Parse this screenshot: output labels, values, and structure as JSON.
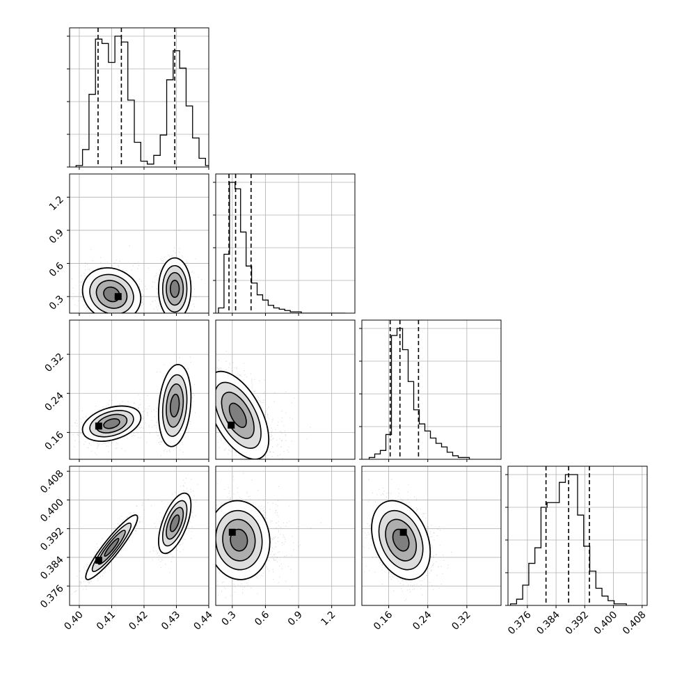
{
  "chart_data": {
    "type": "corner",
    "n_params": 4,
    "grid": true,
    "params": [
      {
        "range": [
          0.397,
          0.44
        ],
        "ticks": [
          0.4,
          0.41,
          0.42,
          0.43,
          0.44
        ],
        "tick_labels": [
          "0.40",
          "0.41",
          "0.42",
          "0.43",
          "0.44"
        ]
      },
      {
        "range": [
          0.15,
          1.41
        ],
        "ticks": [
          0.3,
          0.6,
          0.9,
          1.2
        ],
        "tick_labels": [
          "0.3",
          "0.6",
          "0.9",
          "1.2"
        ]
      },
      {
        "range": [
          0.105,
          0.39
        ],
        "ticks": [
          0.16,
          0.24,
          0.32
        ],
        "tick_labels": [
          "0.16",
          "0.24",
          "0.32"
        ]
      },
      {
        "range": [
          0.3706,
          0.4094
        ],
        "ticks": [
          0.376,
          0.384,
          0.392,
          0.4,
          0.408
        ],
        "tick_labels": [
          "0.376",
          "0.384",
          "0.392",
          "0.400",
          "0.408"
        ]
      }
    ],
    "quantiles": [
      [
        0.4058,
        0.413,
        0.4295
      ],
      [
        0.27,
        0.33,
        0.47
      ],
      [
        0.163,
        0.183,
        0.221
      ],
      [
        0.3812,
        0.3875,
        0.3933
      ]
    ],
    "histograms": [
      {
        "edges_from": 0.399,
        "bin_width": 0.002,
        "counts": [
          1,
          12,
          50,
          88,
          85,
          72,
          90,
          86,
          46,
          17,
          4,
          2,
          8,
          22,
          60,
          80,
          68,
          42,
          20,
          6,
          1
        ]
      },
      {
        "edges_from": 0.175,
        "bin_width": 0.05,
        "counts": [
          4,
          45,
          100,
          95,
          62,
          36,
          23,
          14,
          10,
          6,
          4,
          3,
          2,
          1,
          1,
          0,
          0,
          0,
          0,
          0,
          0,
          0,
          0
        ]
      },
      {
        "edges_from": 0.12,
        "bin_width": 0.0114,
        "counts": [
          1,
          3,
          5,
          14,
          70,
          74,
          62,
          44,
          28,
          20,
          16,
          12,
          9,
          7,
          4,
          2,
          1,
          1
        ]
      },
      {
        "edges_from": 0.3713,
        "bin_width": 0.0017,
        "counts": [
          1,
          4,
          13,
          27,
          37,
          63,
          66,
          66,
          79,
          84,
          84,
          58,
          38,
          22,
          11,
          6,
          3,
          1,
          1
        ]
      }
    ],
    "pairs": [
      {
        "x": 0,
        "y": 1,
        "modes": [
          {
            "cx": 0.41,
            "cy": 0.32,
            "sx": 0.0045,
            "sy": 0.12,
            "rho": -0.15,
            "w": 0.64
          },
          {
            "cx": 0.4295,
            "cy": 0.37,
            "sx": 0.0025,
            "sy": 0.14,
            "rho": 0.0,
            "w": 0.36
          }
        ],
        "peak": [
          0.412,
          0.3
        ]
      },
      {
        "x": 0,
        "y": 2,
        "modes": [
          {
            "cx": 0.41,
            "cy": 0.178,
            "sx": 0.0045,
            "sy": 0.018,
            "rho": 0.35,
            "w": 0.64
          },
          {
            "cx": 0.4295,
            "cy": 0.215,
            "sx": 0.0025,
            "sy": 0.042,
            "rho": 0.2,
            "w": 0.36
          }
        ],
        "peak": [
          0.406,
          0.173
        ]
      },
      {
        "x": 0,
        "y": 3,
        "modes": [
          {
            "cx": 0.41,
            "cy": 0.3868,
            "sx": 0.004,
            "sy": 0.0045,
            "rho": 0.92,
            "w": 0.64
          },
          {
            "cx": 0.4295,
            "cy": 0.3935,
            "sx": 0.0025,
            "sy": 0.0042,
            "rho": 0.6,
            "w": 0.36
          }
        ],
        "peak": [
          0.406,
          0.3832
        ]
      },
      {
        "x": 1,
        "y": 2,
        "modes": [
          {
            "cx": 0.35,
            "cy": 0.195,
            "sx": 0.14,
            "sy": 0.045,
            "rho": -0.55,
            "w": 1.0
          }
        ],
        "peak": [
          0.29,
          0.175
        ]
      },
      {
        "x": 1,
        "y": 3,
        "modes": [
          {
            "cx": 0.36,
            "cy": 0.3888,
            "sx": 0.14,
            "sy": 0.0055,
            "rho": -0.05,
            "w": 1.0
          }
        ],
        "peak": [
          0.3,
          0.391
        ]
      },
      {
        "x": 2,
        "y": 3,
        "modes": [
          {
            "cx": 0.185,
            "cy": 0.3888,
            "sx": 0.03,
            "sy": 0.0055,
            "rho": -0.3,
            "w": 1.0
          }
        ],
        "peak": [
          0.19,
          0.391
        ]
      }
    ]
  }
}
